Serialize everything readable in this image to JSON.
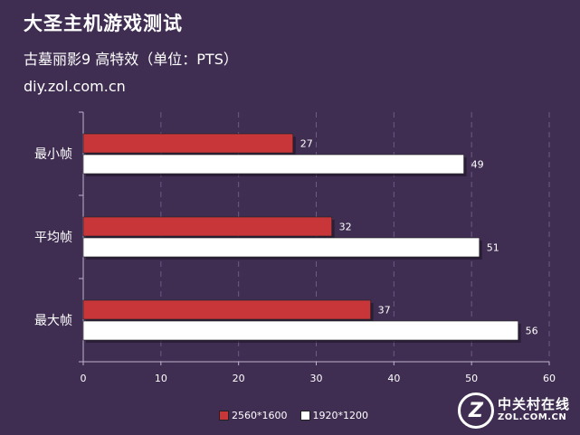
{
  "chart_data": {
    "type": "bar",
    "orientation": "horizontal",
    "title": "大圣主机游戏测试",
    "subtitle": "古墓丽影9 高特效（单位：PTS）",
    "source": "diy.zol.com.cn",
    "categories": [
      "最小帧",
      "平均帧",
      "最大帧"
    ],
    "series": [
      {
        "name": "2560*1600",
        "values": [
          27,
          32,
          37
        ],
        "color": "#c8363a"
      },
      {
        "name": "1920*1200",
        "values": [
          49,
          51,
          56
        ],
        "color": "#ffffff"
      }
    ],
    "xlim": [
      0,
      60
    ],
    "xticks": [
      "0",
      "10",
      "20",
      "30",
      "40",
      "50",
      "60"
    ],
    "grid": "vertical dashed",
    "legend_position": "bottom"
  },
  "logo": {
    "mark": "Z",
    "text_cn": "中关村在线",
    "text_en": "ZOL.COM.CN"
  }
}
